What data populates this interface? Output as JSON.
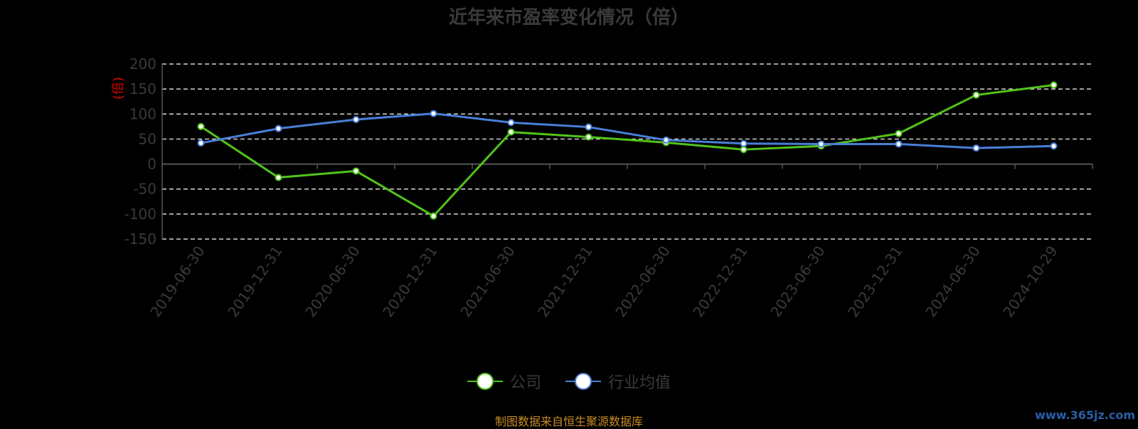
{
  "chart_data": {
    "type": "line",
    "title": "近年来市盈率变化情况（倍）",
    "ylabel": "(倍)",
    "categories": [
      "2019-06-30",
      "2019-12-31",
      "2020-06-30",
      "2020-12-31",
      "2021-06-30",
      "2021-12-31",
      "2022-06-30",
      "2022-12-31",
      "2023-06-30",
      "2023-12-31",
      "2024-06-30",
      "2024-10-29"
    ],
    "ylim": [
      -150,
      200
    ],
    "yticks": [
      200,
      150,
      100,
      50,
      0,
      -50,
      -100,
      -150
    ],
    "grid": true,
    "legend_position": "bottom",
    "series": [
      {
        "name": "公司",
        "color": "#52c41a",
        "values": [
          75,
          -27,
          -14,
          -104,
          64,
          54,
          43,
          29,
          36,
          61,
          138,
          158
        ]
      },
      {
        "name": "行业均值",
        "color": "#4a7fd9",
        "values": [
          42,
          71,
          89,
          101,
          83,
          74,
          48,
          41,
          40,
          40,
          32,
          36
        ]
      }
    ]
  },
  "footer": {
    "source": "制图数据来自恒生聚源数据库",
    "watermark": "www.365jz.com"
  }
}
